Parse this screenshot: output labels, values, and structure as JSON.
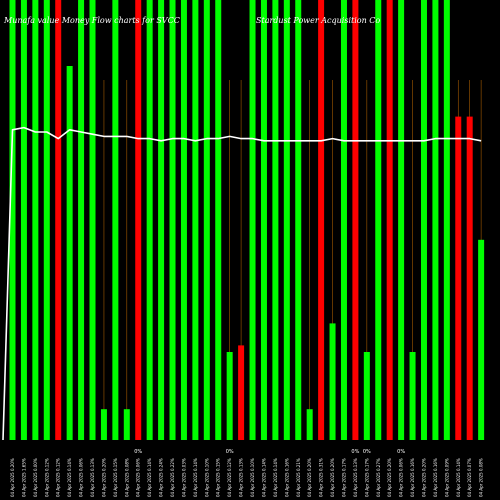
{
  "chart_data": {
    "type": "bar",
    "title_left": "Munafa value Money Flow charts for SVCC",
    "title_right": "Stardust Power Acquisition Co",
    "ylim": [
      0,
      100
    ],
    "colors": {
      "up": "#00ff00",
      "down": "#ff0000",
      "line": "#ffffff",
      "grid": "#a35a00",
      "background": "#000000"
    },
    "bars": [
      {
        "date": "04 Apr 2025",
        "pct": "0.20%",
        "value": 100,
        "color": "up"
      },
      {
        "date": "04 Apr 2025",
        "pct": "1.65%",
        "value": 100,
        "color": "up"
      },
      {
        "date": "04 Apr 2025",
        "pct": "0.00%",
        "value": 100,
        "color": "up"
      },
      {
        "date": "04 Apr 2025",
        "pct": "0.12%",
        "value": 100,
        "color": "up"
      },
      {
        "date": "04 Apr 2025",
        "pct": "0.12%",
        "value": 100,
        "color": "down"
      },
      {
        "date": "04 Apr 2025",
        "pct": "0.14%",
        "value": 85,
        "color": "up"
      },
      {
        "date": "04 Apr 2025",
        "pct": "0.06%",
        "value": 100,
        "color": "up"
      },
      {
        "date": "04 Apr 2025",
        "pct": "0.13%",
        "value": 100,
        "color": "up"
      },
      {
        "date": "04 Apr 2025",
        "pct": "0.20%",
        "value": 7,
        "color": "up"
      },
      {
        "date": "04 Apr 2025",
        "pct": "0.15%",
        "value": 100,
        "color": "up"
      },
      {
        "date": "04 Apr 2025",
        "pct": "0.08%",
        "value": 7,
        "color": "up"
      },
      {
        "date": "04 Apr 2025",
        "pct": "0.06%",
        "value": 100,
        "color": "down"
      },
      {
        "date": "04 Apr 2025",
        "pct": "0.14%",
        "value": 100,
        "color": "up"
      },
      {
        "date": "04 Apr 2025",
        "pct": "0.24%",
        "value": 100,
        "color": "up"
      },
      {
        "date": "04 Apr 2025",
        "pct": "0.22%",
        "value": 100,
        "color": "up"
      },
      {
        "date": "04 Apr 2025",
        "pct": "0.03%",
        "value": 100,
        "color": "up"
      },
      {
        "date": "04 Apr 2025",
        "pct": "0.14%",
        "value": 100,
        "color": "up"
      },
      {
        "date": "04 Apr 2025",
        "pct": "0.10%",
        "value": 100,
        "color": "up"
      },
      {
        "date": "04 Apr 2025",
        "pct": "0.15%",
        "value": 100,
        "color": "up"
      },
      {
        "date": "04 Apr 2025",
        "pct": "0.12%",
        "value": 20,
        "color": "up"
      },
      {
        "date": "04 Apr 2025",
        "pct": "0.13%",
        "value": 21.5,
        "color": "down"
      },
      {
        "date": "04 Apr 2025",
        "pct": "0.10%",
        "value": 100,
        "color": "up"
      },
      {
        "date": "04 Apr 2025",
        "pct": "0.14%",
        "value": 100,
        "color": "up"
      },
      {
        "date": "04 Apr 2025",
        "pct": "0.14%",
        "value": 100,
        "color": "up"
      },
      {
        "date": "04 Apr 2025",
        "pct": "0.16%",
        "value": 100,
        "color": "up"
      },
      {
        "date": "04 Apr 2025",
        "pct": "0.21%",
        "value": 100,
        "color": "up"
      },
      {
        "date": "04 Apr 2025",
        "pct": "0.20%",
        "value": 7,
        "color": "up"
      },
      {
        "date": "04 Apr 2025",
        "pct": "0.31%",
        "value": 100,
        "color": "down"
      },
      {
        "date": "04 Apr 2025",
        "pct": "0.20%",
        "value": 26.5,
        "color": "up"
      },
      {
        "date": "04 Apr 2025",
        "pct": "0.17%",
        "value": 100,
        "color": "up"
      },
      {
        "date": "04 Apr 2025",
        "pct": "0.13%",
        "value": 100,
        "color": "down"
      },
      {
        "date": "04 Apr 2025",
        "pct": "0.17%",
        "value": 20,
        "color": "up"
      },
      {
        "date": "04 Apr 2025",
        "pct": "0.27%",
        "value": 100,
        "color": "up"
      },
      {
        "date": "04 Apr 2025",
        "pct": "0.20%",
        "value": 100,
        "color": "down"
      },
      {
        "date": "04 Apr 2025",
        "pct": "0.06%",
        "value": 100,
        "color": "up"
      },
      {
        "date": "04 Apr 2025",
        "pct": "0.16%",
        "value": 20,
        "color": "up"
      },
      {
        "date": "04 Apr 2025",
        "pct": "0.20%",
        "value": 100,
        "color": "up"
      },
      {
        "date": "04 Apr 2025",
        "pct": "0.16%",
        "value": 100,
        "color": "up"
      },
      {
        "date": "04 Apr 2025",
        "pct": "0.09%",
        "value": 100,
        "color": "up"
      },
      {
        "date": "04 Apr 2025",
        "pct": "0.14%",
        "value": 73.5,
        "color": "down"
      },
      {
        "date": "04 Apr 2025",
        "pct": "0.07%",
        "value": 73.5,
        "color": "down"
      },
      {
        "date": "04 Apr 2025",
        "pct": "0.08%",
        "value": 45.5,
        "color": "up"
      }
    ],
    "line": [
      70.5,
      71,
      70,
      70,
      68.5,
      70.5,
      70,
      69.5,
      69,
      69,
      69,
      68.5,
      68.5,
      68,
      68.5,
      68.5,
      68,
      68.5,
      68.5,
      69,
      68.5,
      68.5,
      68,
      68,
      68,
      68,
      68,
      68,
      68.5,
      68,
      68,
      68,
      68,
      68,
      68,
      68,
      68,
      68.5,
      68.5,
      68.5,
      68.5,
      68
    ],
    "labels": [
      {
        "text": "0%",
        "bar": 11
      },
      {
        "text": "0%",
        "bar": 19
      },
      {
        "text": "0%",
        "bar": 30
      },
      {
        "text": "0%",
        "bar": 31
      },
      {
        "text": "0%",
        "bar": 34
      }
    ]
  }
}
